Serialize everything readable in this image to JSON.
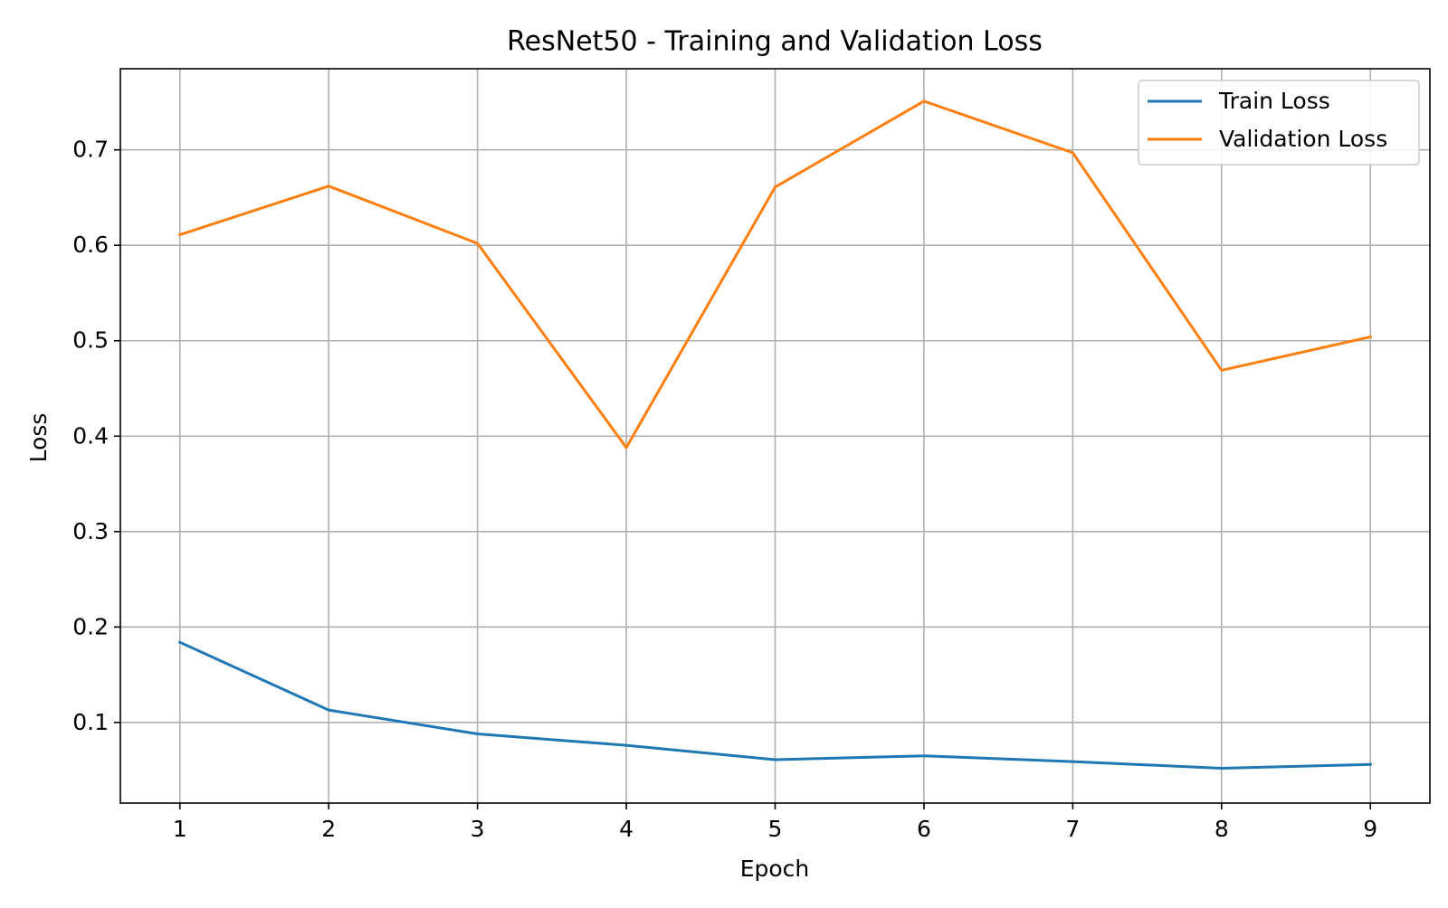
{
  "chart_data": {
    "type": "line",
    "title": "ResNet50 - Training and Validation Loss",
    "xlabel": "Epoch",
    "ylabel": "Loss",
    "x": [
      1,
      2,
      3,
      4,
      5,
      6,
      7,
      8,
      9
    ],
    "xlim": [
      0.6,
      9.4
    ],
    "ylim": [
      0.0155,
      0.785
    ],
    "xticks": [
      1,
      2,
      3,
      4,
      5,
      6,
      7,
      8,
      9
    ],
    "yticks": [
      0.1,
      0.2,
      0.3,
      0.4,
      0.5,
      0.6,
      0.7
    ],
    "ytick_labels": [
      "0.1",
      "0.2",
      "0.3",
      "0.4",
      "0.5",
      "0.6",
      "0.7"
    ],
    "grid": true,
    "legend_position": "top-right",
    "series": [
      {
        "name": "Train Loss",
        "color": "#1f77b4",
        "values": [
          0.184,
          0.113,
          0.088,
          0.076,
          0.061,
          0.065,
          0.059,
          0.052,
          0.056
        ]
      },
      {
        "name": "Validation Loss",
        "color": "#ff7f0e",
        "values": [
          0.611,
          0.662,
          0.602,
          0.388,
          0.661,
          0.751,
          0.697,
          0.469,
          0.504
        ]
      }
    ]
  }
}
